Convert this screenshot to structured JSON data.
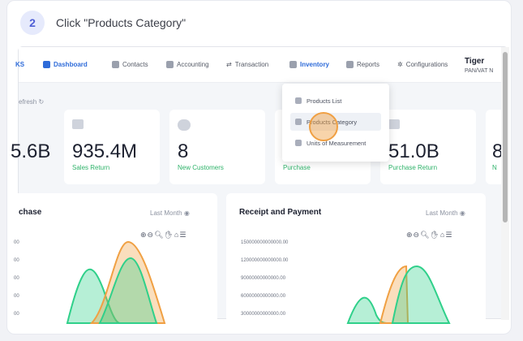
{
  "step": {
    "number": "2",
    "instruction": "Click \"Products Category\""
  },
  "nav": {
    "items": [
      {
        "label": "KS",
        "icon": "home-icon"
      },
      {
        "label": "Dashboard",
        "icon": "dashboard-icon"
      },
      {
        "label": "Contacts",
        "icon": "contacts-icon"
      },
      {
        "label": "Accounting",
        "icon": "box-icon"
      },
      {
        "label": "Transaction",
        "icon": "transfer-icon"
      },
      {
        "label": "Inventory",
        "icon": "inventory-icon"
      },
      {
        "label": "Reports",
        "icon": "reports-icon"
      },
      {
        "label": "Configurations",
        "icon": "gear-icon"
      }
    ],
    "brand_name": "Tiger",
    "brand_sub": "PAN/VAT N"
  },
  "refresh_label": "efresh",
  "stats": [
    {
      "value": "5.6B",
      "label": ""
    },
    {
      "value": "935.4M",
      "label": "Sales Return"
    },
    {
      "value": "8",
      "label": "New Customers"
    },
    {
      "value": "",
      "label": "Purchase"
    },
    {
      "value": "51.0B",
      "label": "Purchase Return"
    },
    {
      "value": "8",
      "label": "N"
    }
  ],
  "inventory_menu": {
    "items": [
      "Products List",
      "Products Category",
      "Units of Measurement"
    ]
  },
  "panels": [
    {
      "title": "chase",
      "period": "Last Month",
      "yticks": [
        "00",
        "00",
        "00",
        "00",
        "00"
      ]
    },
    {
      "title": "Receipt and Payment",
      "period": "Last Month",
      "yticks": [
        "150000000000000.00",
        "120000000000000.00",
        "90000000000000.00",
        "60000000000000.00",
        "30000000000000.00"
      ]
    }
  ],
  "colors": {
    "accent": "#2e6bd9",
    "orange": "#f0a043",
    "green": "#2fd08a"
  }
}
